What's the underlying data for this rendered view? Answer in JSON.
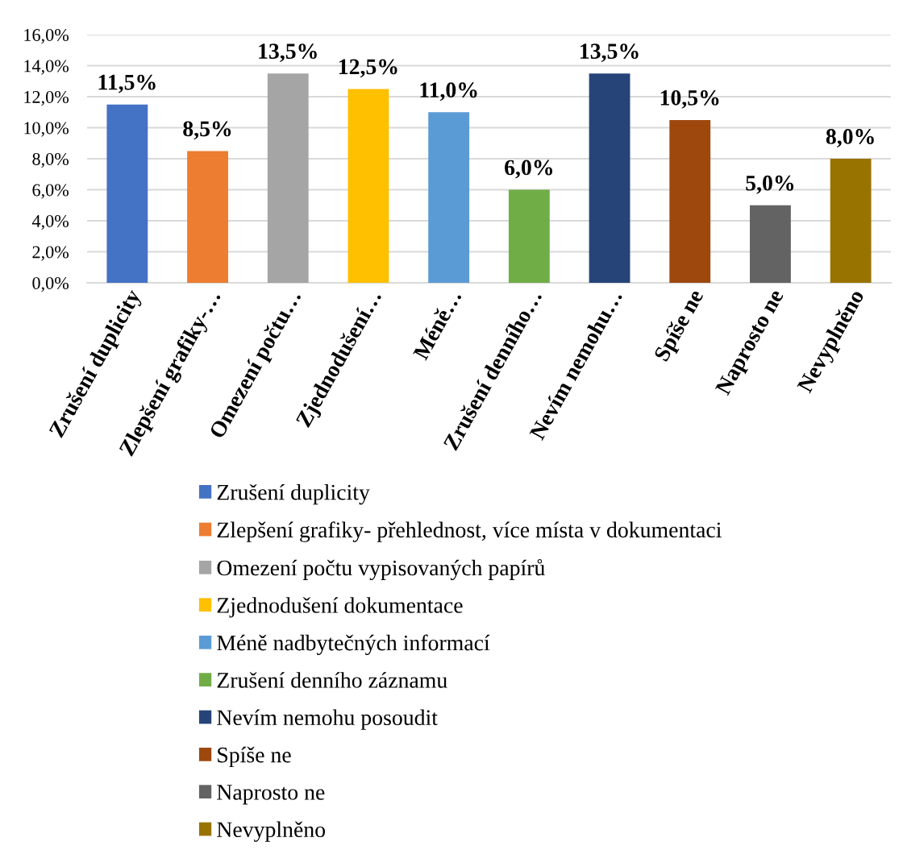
{
  "chart_data": {
    "type": "bar",
    "categories": [
      "Zrušení duplicity",
      "Zlepšení grafiky-…",
      "Omezení počtu…",
      "Zjednodušení…",
      "Méně…",
      "Zrušení denního…",
      "Nevím nemohu…",
      "Spíše ne",
      "Naprosto ne",
      "Nevyplněno"
    ],
    "series": [
      {
        "name": "Zrušení duplicity",
        "color": "#4472c4",
        "values": [
          11.5,
          null,
          null,
          null,
          null,
          null,
          null,
          null,
          null,
          null
        ],
        "value_labels": [
          "11,5%",
          null,
          null,
          null,
          null,
          null,
          null,
          null,
          null,
          null
        ]
      },
      {
        "name": "Zlepšení grafiky- přehlednost, více místa v dokumentaci",
        "color": "#ed7d31",
        "values": [
          null,
          8.5,
          null,
          null,
          null,
          null,
          null,
          null,
          null,
          null
        ],
        "value_labels": [
          null,
          "8,5%",
          null,
          null,
          null,
          null,
          null,
          null,
          null,
          null
        ]
      },
      {
        "name": "Omezení počtu vypisovaných papírů",
        "color": "#a5a5a5",
        "values": [
          null,
          null,
          13.5,
          null,
          null,
          null,
          null,
          null,
          null,
          null
        ],
        "value_labels": [
          null,
          null,
          "13,5%",
          null,
          null,
          null,
          null,
          null,
          null,
          null
        ]
      },
      {
        "name": "Zjednodušení dokumentace",
        "color": "#ffc000",
        "values": [
          null,
          null,
          null,
          12.5,
          null,
          null,
          null,
          null,
          null,
          null
        ],
        "value_labels": [
          null,
          null,
          null,
          "12,5%",
          null,
          null,
          null,
          null,
          null,
          null
        ]
      },
      {
        "name": "Méně nadbytečných informací",
        "color": "#5b9bd5",
        "values": [
          null,
          null,
          null,
          null,
          11.0,
          null,
          null,
          null,
          null,
          null
        ],
        "value_labels": [
          null,
          null,
          null,
          null,
          "11,0%",
          null,
          null,
          null,
          null,
          null
        ]
      },
      {
        "name": "Zrušení denního záznamu",
        "color": "#70ad47",
        "values": [
          null,
          null,
          null,
          null,
          null,
          6.0,
          null,
          null,
          null,
          null
        ],
        "value_labels": [
          null,
          null,
          null,
          null,
          null,
          "6,0%",
          null,
          null,
          null,
          null
        ]
      },
      {
        "name": "Nevím nemohu posoudit",
        "color": "#264478",
        "values": [
          null,
          null,
          null,
          null,
          null,
          null,
          13.5,
          null,
          null,
          null
        ],
        "value_labels": [
          null,
          null,
          null,
          null,
          null,
          null,
          "13,5%",
          null,
          null,
          null
        ]
      },
      {
        "name": "Spíše ne",
        "color": "#9e480e",
        "values": [
          null,
          null,
          null,
          null,
          null,
          null,
          null,
          10.5,
          null,
          null
        ],
        "value_labels": [
          null,
          null,
          null,
          null,
          null,
          null,
          null,
          "10,5%",
          null,
          null
        ]
      },
      {
        "name": "Naprosto ne",
        "color": "#636363",
        "values": [
          null,
          null,
          null,
          null,
          null,
          null,
          null,
          null,
          5.0,
          null
        ],
        "value_labels": [
          null,
          null,
          null,
          null,
          null,
          null,
          null,
          null,
          "5,0%",
          null
        ]
      },
      {
        "name": "Nevyplněno",
        "color": "#997300",
        "values": [
          null,
          null,
          null,
          null,
          null,
          null,
          null,
          null,
          null,
          8.0
        ],
        "value_labels": [
          null,
          null,
          null,
          null,
          null,
          null,
          null,
          null,
          null,
          "8,0%"
        ]
      }
    ],
    "ylim": [
      0,
      16
    ],
    "yticks": [
      {
        "value": 0,
        "label": "0,0%"
      },
      {
        "value": 2,
        "label": "2,0%"
      },
      {
        "value": 4,
        "label": "4,0%"
      },
      {
        "value": 6,
        "label": "6,0%"
      },
      {
        "value": 8,
        "label": "8,0%"
      },
      {
        "value": 10,
        "label": "10,0%"
      },
      {
        "value": 12,
        "label": "12,0%"
      },
      {
        "value": 14,
        "label": "14,0%"
      },
      {
        "value": 16,
        "label": "16,0%"
      }
    ],
    "grid": "y",
    "legend": "bottom"
  }
}
